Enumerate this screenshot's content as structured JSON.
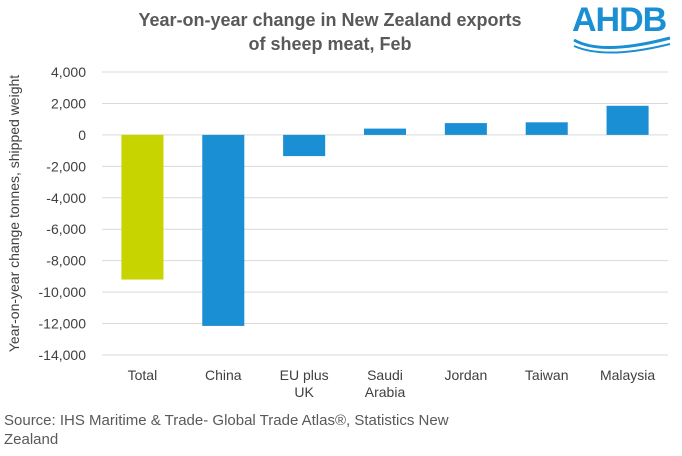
{
  "chart_data": {
    "type": "bar",
    "title_lines": [
      "Year-on-year change in New Zealand exports",
      "of sheep meat, Feb"
    ],
    "ylabel": "Year-on-year  change tonnes,  shipped weight",
    "xlabel": "",
    "categories": [
      [
        "Total"
      ],
      [
        "China"
      ],
      [
        "EU plus",
        "UK"
      ],
      [
        "Saudi",
        "Arabia"
      ],
      [
        "Jordan"
      ],
      [
        "Taiwan"
      ],
      [
        "Malaysia"
      ]
    ],
    "values": [
      -9200,
      -12150,
      -1350,
      400,
      750,
      800,
      1850
    ],
    "colors": [
      "#c8d400",
      "#1a8fd4",
      "#1a8fd4",
      "#1a8fd4",
      "#1a8fd4",
      "#1a8fd4",
      "#1a8fd4"
    ],
    "ylim": [
      -14000,
      4000
    ],
    "yticks": [
      4000,
      2000,
      0,
      -2000,
      -4000,
      -6000,
      -8000,
      -10000,
      -12000,
      -14000
    ],
    "ytick_labels": [
      "4,000",
      "2,000",
      "0",
      "-2,000",
      "-4,000",
      "-6,000",
      "-8,000",
      "-10,000",
      "-12,000",
      "-14,000"
    ],
    "grid": true,
    "gridline_color": "#d9d9d9"
  },
  "logo": {
    "text": "AHDB",
    "color": "#1a8fd4"
  },
  "source_lines": [
    "Source: IHS Maritime & Trade- Global Trade Atlas®, Statistics New",
    "Zealand"
  ]
}
